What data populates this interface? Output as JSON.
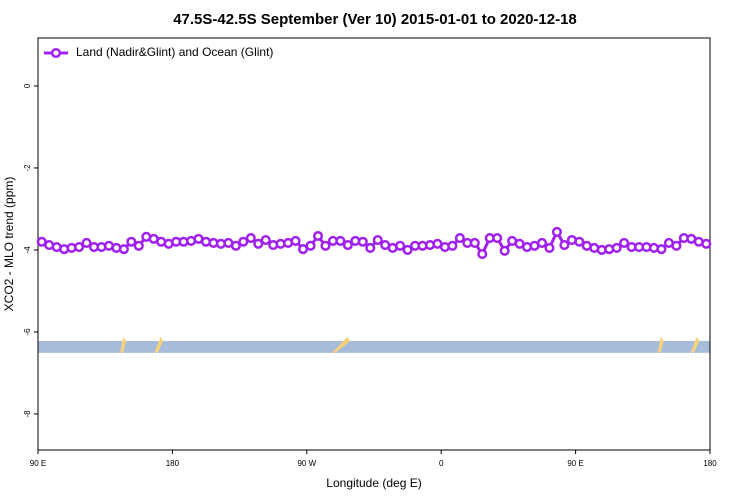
{
  "chart_data": {
    "type": "line",
    "title": "47.5S-42.5S September (Ver 10)   2015-01-01 to 2020-12-18",
    "x_label": "Longitude (deg E)",
    "y_label": "XCO2 - MLO trend (ppm)",
    "xlim": [
      90,
      540
    ],
    "xticks": [
      {
        "value": 90,
        "label": "90 E"
      },
      180,
      {
        "value": 270,
        "label": "90 W"
      },
      {
        "value": 360,
        "label": "0"
      },
      {
        "value": 450,
        "label": "90 E"
      },
      {
        "value": 540,
        "label": "180"
      }
    ],
    "ylim": [
      -8.88,
      1.17
    ],
    "yticks": [
      0,
      -2,
      -4,
      -6,
      -8
    ],
    "legend": "top-left",
    "x": [
      92.5,
      97.5,
      102.5,
      107.5,
      112.5,
      117.5,
      122.5,
      127.5,
      132.5,
      137.5,
      142.5,
      147.5,
      152.5,
      157.5,
      162.5,
      167.5,
      172.5,
      177.5,
      182.5,
      187.5,
      192.5,
      197.5,
      202.5,
      207.5,
      212.5,
      217.5,
      222.5,
      227.5,
      232.5,
      237.5,
      242.5,
      247.5,
      252.5,
      257.5,
      262.5,
      267.5,
      272.5,
      277.5,
      282.5,
      287.5,
      292.5,
      297.5,
      302.5,
      307.5,
      312.5,
      317.5,
      322.5,
      327.5,
      332.5,
      337.5,
      342.5,
      347.5,
      352.5,
      357.5,
      362.5,
      367.5,
      372.5,
      377.5,
      382.5,
      387.5,
      392.5,
      397.5,
      402.5,
      407.5,
      412.5,
      417.5,
      422.5,
      427.5,
      432.5,
      437.5,
      442.5,
      447.5,
      452.5,
      457.5,
      462.5,
      467.5,
      472.5,
      477.5,
      482.5,
      487.5,
      492.5,
      497.5,
      502.5,
      507.5,
      512.5,
      517.5,
      522.5,
      527.5,
      532.5,
      537.5
    ],
    "series": [
      {
        "name": "Land (Nadir&Glint) and Ocean (Glint)",
        "color": "#a020f0",
        "values": [
          -3.8,
          -3.88,
          -3.93,
          -3.98,
          -3.95,
          -3.93,
          -3.83,
          -3.93,
          -3.93,
          -3.9,
          -3.95,
          -3.98,
          -3.8,
          -3.9,
          -3.68,
          -3.73,
          -3.8,
          -3.85,
          -3.8,
          -3.8,
          -3.78,
          -3.73,
          -3.8,
          -3.83,
          -3.85,
          -3.83,
          -3.9,
          -3.8,
          -3.71,
          -3.85,
          -3.76,
          -3.88,
          -3.85,
          -3.83,
          -3.78,
          -3.98,
          -3.9,
          -3.66,
          -3.9,
          -3.78,
          -3.78,
          -3.88,
          -3.78,
          -3.8,
          -3.95,
          -3.76,
          -3.88,
          -3.95,
          -3.9,
          -4.0,
          -3.9,
          -3.9,
          -3.88,
          -3.85,
          -3.93,
          -3.9,
          -3.71,
          -3.83,
          -3.83,
          -4.1,
          -3.71,
          -3.71,
          -4.02,
          -3.78,
          -3.85,
          -3.93,
          -3.9,
          -3.83,
          -3.95,
          -3.56,
          -3.88,
          -3.76,
          -3.8,
          -3.9,
          -3.95,
          -4.0,
          -3.98,
          -3.95,
          -3.83,
          -3.93,
          -3.93,
          -3.93,
          -3.95,
          -3.98,
          -3.83,
          -3.9,
          -3.71,
          -3.73,
          -3.8,
          -3.85
        ]
      }
    ],
    "surface_band": {
      "ylim": [
        -6.51,
        -6.22
      ],
      "color": "#a7bcdb",
      "land_color": "#f7d27a",
      "land_x": [
        [
          145,
          147
        ],
        [
          168,
          172
        ],
        [
          287,
          297
        ],
        [
          505,
          507
        ],
        [
          527,
          531
        ]
      ]
    }
  }
}
